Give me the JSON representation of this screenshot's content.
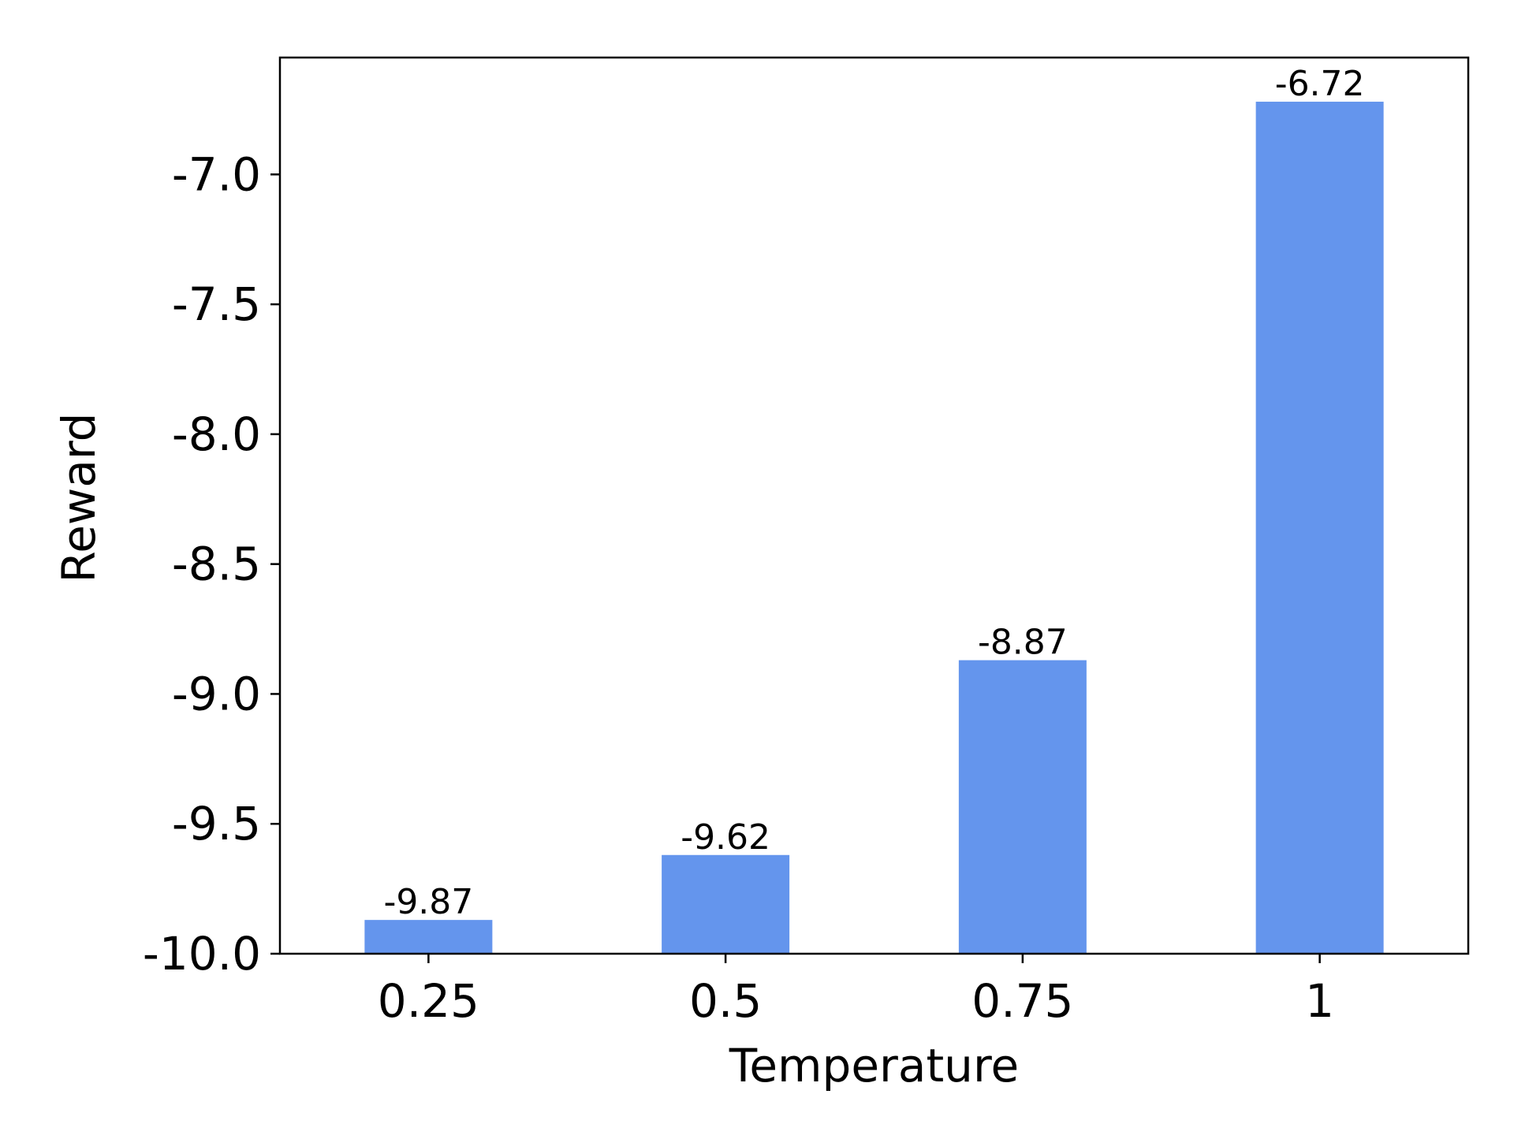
{
  "chart_data": {
    "type": "bar",
    "title": "",
    "xlabel": "Temperature",
    "ylabel": "Reward",
    "categories": [
      "0.25",
      "0.5",
      "0.75",
      "1"
    ],
    "values": [
      -9.87,
      -9.62,
      -8.87,
      -6.72
    ],
    "value_labels": [
      "-9.87",
      "-9.62",
      "-8.87",
      "-6.72"
    ],
    "ylim": [
      -10.0,
      -6.55
    ],
    "yticks": [
      -10.0,
      -9.5,
      -9.0,
      -8.5,
      -8.0,
      -7.5,
      -7.0
    ],
    "ytick_labels": [
      "-10.0",
      "-9.5",
      "-9.0",
      "-8.5",
      "-8.0",
      "-7.5",
      "-7.0"
    ],
    "bar_color": "#6495ed",
    "grid": false,
    "legend": "none"
  }
}
